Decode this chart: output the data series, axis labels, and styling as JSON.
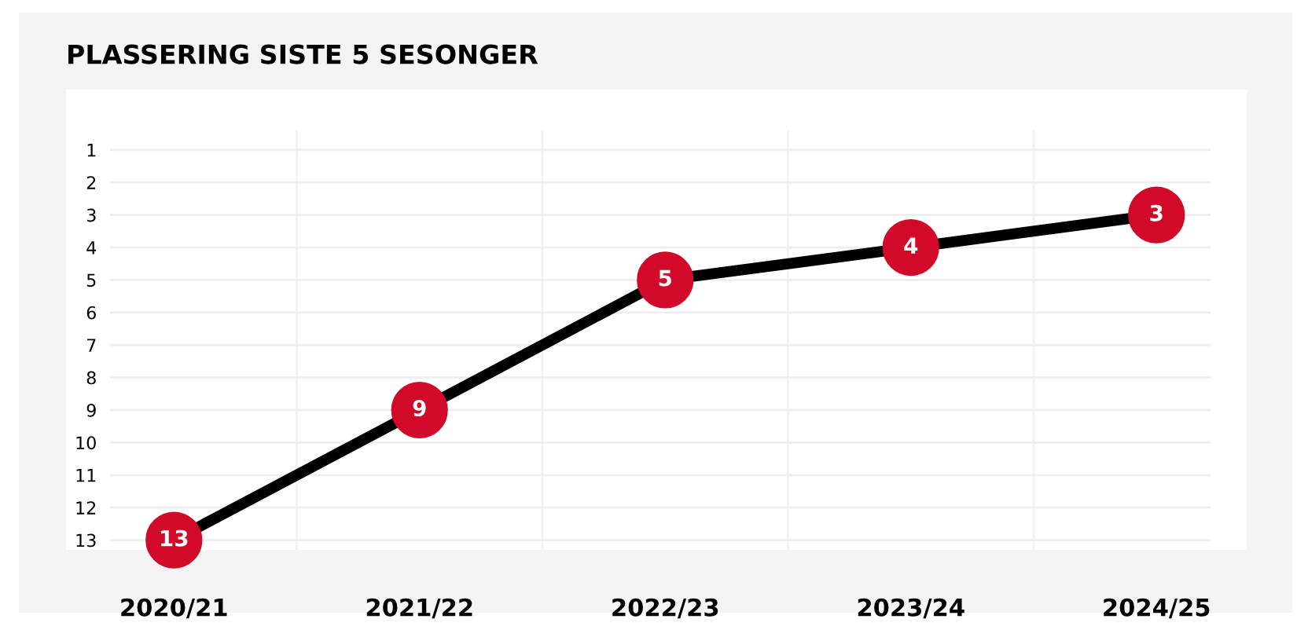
{
  "chart_data": {
    "type": "line",
    "title": "PLASSERING SISTE 5 SESONGER",
    "categories": [
      "2020/21",
      "2021/22",
      "2022/23",
      "2023/24",
      "2024/25"
    ],
    "series": [
      {
        "color": "#000000",
        "values": [
          13,
          9,
          5,
          4,
          3
        ]
      }
    ],
    "ylim": [
      13.3,
      0.4
    ],
    "yticks": [
      1,
      2,
      3,
      4,
      5,
      6,
      7,
      8,
      9,
      10,
      11,
      12,
      13
    ],
    "marker": "circle",
    "grid": true,
    "data_labels": true
  }
}
